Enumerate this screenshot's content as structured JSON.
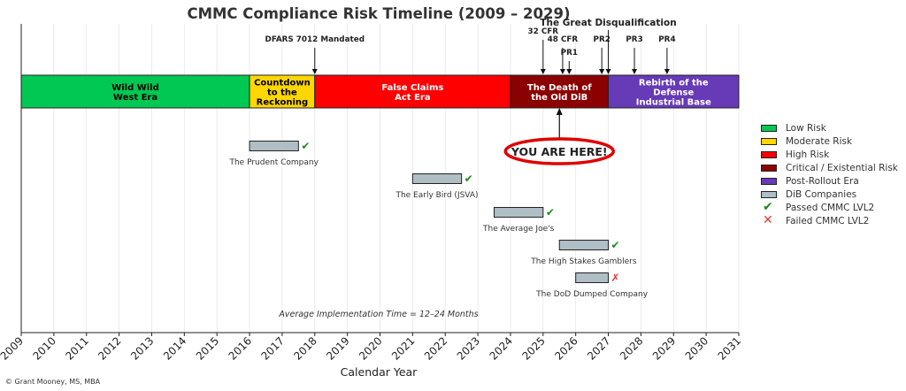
{
  "chart_data": {
    "type": "timeline",
    "title": "CMMC Compliance Risk Timeline (2009 – 2029)",
    "xlabel": "Calendar Year",
    "xlim": [
      2009,
      2031
    ],
    "x_ticks": [
      2009,
      2010,
      2011,
      2012,
      2013,
      2014,
      2015,
      2016,
      2017,
      2018,
      2019,
      2020,
      2021,
      2022,
      2023,
      2024,
      2025,
      2026,
      2027,
      2028,
      2029,
      2030,
      2031
    ],
    "grid": true,
    "legend_position": "right",
    "eras": [
      {
        "label": "Wild Wild\nWest Era",
        "start": 2009,
        "end": 2016,
        "color": "#00c853",
        "text_color": "#000000"
      },
      {
        "label": "Countdown\nto the\nReckoning",
        "start": 2016,
        "end": 2018,
        "color": "#ffd600",
        "text_color": "#000000"
      },
      {
        "label": "False Claims\nAct Era",
        "start": 2018,
        "end": 2024,
        "color": "#ff0000",
        "text_color": "#ffffff"
      },
      {
        "label": "The Death of\nthe Old DiB",
        "start": 2024,
        "end": 2027,
        "color": "#8b0000",
        "text_color": "#ffffff"
      },
      {
        "label": "Rebirth of the\nDefense\nIndustrial Base",
        "start": 2027,
        "end": 2031,
        "color": "#673ab7",
        "text_color": "#ffffff"
      }
    ],
    "milestones": [
      {
        "label": "DFARS 7012 Mandated",
        "x": 2018.0,
        "level": 1
      },
      {
        "label": "32 CFR",
        "x": 2025.0,
        "level": 0
      },
      {
        "label": "48 CFR",
        "x": 2025.6,
        "level": 1
      },
      {
        "label": "PR1",
        "x": 2025.8,
        "level": 2
      },
      {
        "label": "PR2",
        "x": 2026.8,
        "level": 1
      },
      {
        "label": "The Great Disqualification",
        "x": 2027.0,
        "level": -1
      },
      {
        "label": "PR3",
        "x": 2027.8,
        "level": 1
      },
      {
        "label": "PR4",
        "x": 2028.8,
        "level": 1
      }
    ],
    "you_are_here": {
      "label": "YOU ARE HERE!",
      "x": 2025.5
    },
    "companies": [
      {
        "name": "The Prudent Company",
        "start": 2016.0,
        "end": 2017.5,
        "result": "passed"
      },
      {
        "name": "The Early Bird (JSVA)",
        "start": 2021.0,
        "end": 2022.5,
        "result": "passed"
      },
      {
        "name": "The Average Joe's",
        "start": 2023.5,
        "end": 2025.0,
        "result": "passed"
      },
      {
        "name": "The High Stakes Gamblers",
        "start": 2025.5,
        "end": 2027.0,
        "result": "passed"
      },
      {
        "name": "The DoD Dumped Company",
        "start": 2026.0,
        "end": 2027.0,
        "result": "failed"
      }
    ],
    "annotation": "Average Implementation Time = 12–24 Months",
    "legend": [
      {
        "label": "Low Risk",
        "kind": "swatch",
        "color": "#00c853"
      },
      {
        "label": "Moderate Risk",
        "kind": "swatch",
        "color": "#ffd600"
      },
      {
        "label": "High Risk",
        "kind": "swatch",
        "color": "#ff0000"
      },
      {
        "label": "Critical / Existential Risk",
        "kind": "swatch",
        "color": "#8b0000"
      },
      {
        "label": "Post-Rollout Era",
        "kind": "swatch",
        "color": "#673ab7"
      },
      {
        "label": "DiB Companies",
        "kind": "swatch",
        "color": "#b0bec5"
      },
      {
        "label": "Passed CMMC LVL2",
        "kind": "check",
        "color": "#1b8a1b"
      },
      {
        "label": "Failed CMMC LVL2",
        "kind": "cross",
        "color": "#e53935"
      }
    ],
    "credit": "© Grant Mooney, MS, MBA"
  }
}
